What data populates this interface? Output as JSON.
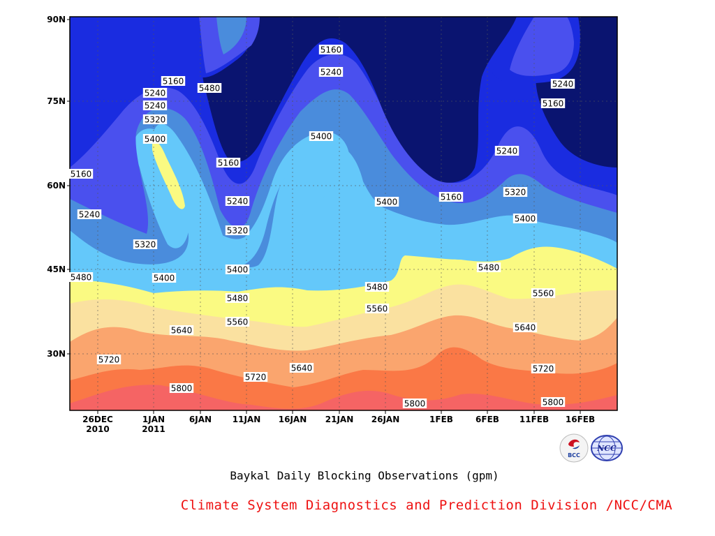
{
  "chart_data": {
    "type": "contour",
    "title": "Baykal Daily Blocking Observations (gpm)",
    "credit": "Climate System Diagnostics and Prediction Division /NCC/CMA",
    "x_ticks": [
      {
        "line1": "26DEC",
        "line2": "2010"
      },
      {
        "line1": "1JAN",
        "line2": "2011"
      },
      {
        "line1": "6JAN",
        "line2": ""
      },
      {
        "line1": "11JAN",
        "line2": ""
      },
      {
        "line1": "16JAN",
        "line2": ""
      },
      {
        "line1": "21JAN",
        "line2": ""
      },
      {
        "line1": "26JAN",
        "line2": ""
      },
      {
        "line1": "1FEB",
        "line2": ""
      },
      {
        "line1": "6FEB",
        "line2": ""
      },
      {
        "line1": "11FEB",
        "line2": ""
      },
      {
        "line1": "16FEB",
        "line2": ""
      }
    ],
    "y_ticks": [
      "30N",
      "45N",
      "60N",
      "75N",
      "90N"
    ],
    "contour_levels": [
      5160,
      5240,
      5320,
      5400,
      5480,
      5560,
      5640,
      5720,
      5800
    ],
    "level_colors": {
      "below_5160": "#0a1470",
      "5160-5240": "#1a2ce0",
      "5240-5320": "#4a50ee",
      "5320-5400": "#4a8cdc",
      "5400-5480": "#64c8fa",
      "5480-5560": "#fafa82",
      "5560-5640": "#fae1a0",
      "5640-5720": "#faa56e",
      "5720-5800": "#fa7846",
      "above_5800": "#f56464"
    },
    "contour_labels": [
      "5160",
      "5240",
      "5320",
      "5400",
      "5480",
      "5160",
      "5240",
      "5240",
      "5320",
      "5400",
      "5480",
      "5160",
      "5240",
      "5320",
      "5400",
      "5480",
      "5560",
      "5640",
      "5720",
      "5800",
      "5160",
      "5240",
      "5400",
      "5400",
      "5480",
      "5560",
      "5640",
      "5720",
      "5160",
      "5240",
      "5320",
      "5400",
      "5480",
      "5560",
      "5640",
      "5720",
      "5800",
      "5800",
      "5240",
      "5160"
    ],
    "grid": true,
    "legend": "none"
  },
  "logos": {
    "left": "BCC",
    "right": "NCC"
  }
}
